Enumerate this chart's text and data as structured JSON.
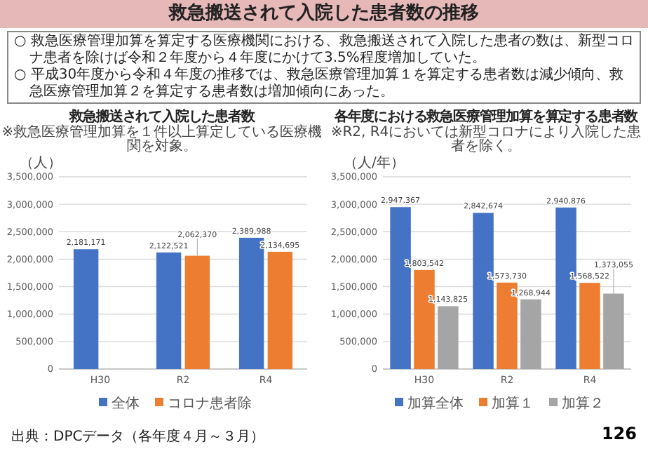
{
  "chart_data": [
    {
      "type": "other",
      "title": "救急搬送されて入院した患者数の推移",
      "annotations": [
        "○ 救急医療管理加算を算定する医療機関における、救急搬送されて入院した患者の数は、新型コロナ患者を除けば令和２年度から４年度にかけて3.5%程度増加していた。",
        "○ 平成30年度から令和４年度の推移では、救急医療管理加算１を算定する患者数は減少傾向、救急医療管理加算２を算定する患者数は増加傾向にあった。"
      ]
    },
    {
      "type": "bar",
      "title": "救急搬送されて入院した患者数",
      "subtitle": "※救急医療管理加算を１件以上算定している医療機関を対象。",
      "ylabel": "（人）",
      "categories": [
        "H30",
        "R2",
        "R4"
      ],
      "series": [
        {
          "name": "全体",
          "color": "#4472c4",
          "values": [
            2181171,
            2122521,
            2389988
          ],
          "value_labels": [
            "2,181,171",
            "2,122,521",
            "2,389,988"
          ]
        },
        {
          "name": "コロナ患者除",
          "color": "#ed7d31",
          "values": [
            null,
            2062370,
            2134695
          ],
          "value_labels": [
            null,
            "2,062,370",
            "2,134,695"
          ]
        }
      ],
      "ylim": [
        0,
        3500000
      ],
      "yticks": [
        {
          "value": 0,
          "label": "0"
        },
        {
          "value": 500000,
          "label": "500,000"
        },
        {
          "value": 1000000,
          "label": "1,000,000"
        },
        {
          "value": 1500000,
          "label": "1,500,000"
        },
        {
          "value": 2000000,
          "label": "2,000,000"
        },
        {
          "value": 2500000,
          "label": "2,500,000"
        },
        {
          "value": 3000000,
          "label": "3,000,000"
        },
        {
          "value": 3500000,
          "label": "3,500,000"
        }
      ],
      "grid": "y",
      "legend": "bottom"
    },
    {
      "type": "bar",
      "title": "各年度における救急医療管理加算を算定する患者数",
      "subtitle": "※R2, R4においては新型コロナにより入院した患者を除く。",
      "ylabel": "（人/年）",
      "categories": [
        "H30",
        "R2",
        "R4"
      ],
      "series": [
        {
          "name": "加算全体",
          "color": "#4472c4",
          "values": [
            2947367,
            2842674,
            2940876
          ],
          "value_labels": [
            "2,947,367",
            "2,842,674",
            "2,940,876"
          ]
        },
        {
          "name": "加算１",
          "color": "#ed7d31",
          "values": [
            1803542,
            1573730,
            1568522
          ],
          "value_labels": [
            "1,803,542",
            "1,573,730",
            "1,568,522"
          ]
        },
        {
          "name": "加算２",
          "color": "#a5a5a5",
          "values": [
            1143825,
            1268944,
            1373055
          ],
          "value_labels": [
            "1,143,825",
            "1,268,944",
            "1,373,055"
          ]
        }
      ],
      "ylim": [
        0,
        3500000
      ],
      "yticks": [
        {
          "value": 0,
          "label": "0"
        },
        {
          "value": 500000,
          "label": "500,000"
        },
        {
          "value": 1000000,
          "label": "1,000,000"
        },
        {
          "value": 1500000,
          "label": "1,500,000"
        },
        {
          "value": 2000000,
          "label": "2,000,000"
        },
        {
          "value": 2500000,
          "label": "2,500,000"
        },
        {
          "value": 3000000,
          "label": "3,000,000"
        },
        {
          "value": 3500000,
          "label": "3,500,000"
        }
      ],
      "grid": "y",
      "legend": "bottom"
    },
    {
      "type": "other",
      "annotations": [
        "出典：DPCデータ（各年度４月～３月）",
        "126"
      ]
    }
  ]
}
